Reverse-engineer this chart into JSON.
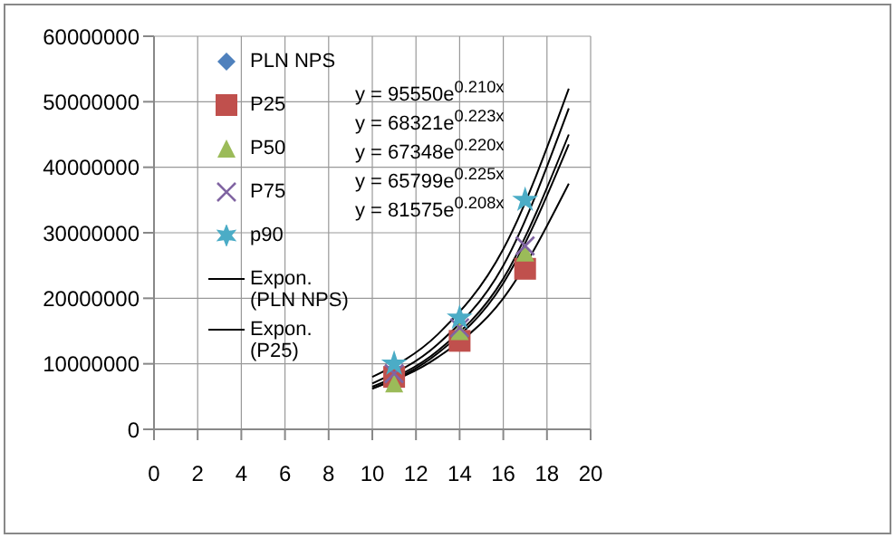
{
  "chart_data": {
    "type": "scatter",
    "xlim": [
      0,
      20
    ],
    "xticks": [
      0,
      2,
      4,
      6,
      8,
      10,
      12,
      14,
      16,
      18,
      20
    ],
    "ylim": [
      0,
      60000000
    ],
    "yticks": [
      0,
      10000000,
      20000000,
      30000000,
      40000000,
      50000000,
      60000000
    ],
    "grid": true,
    "legend": "top left",
    "x": [
      11,
      14,
      17
    ],
    "series": [
      {
        "name": "PLN NPS",
        "color": "#4f81bd",
        "marker": "diamond",
        "values": [
          null,
          null,
          null
        ]
      },
      {
        "name": "P25",
        "color": "#c0504d",
        "marker": "square",
        "values": [
          8000000,
          13500000,
          24500000
        ]
      },
      {
        "name": "P50",
        "color": "#9bbb59",
        "marker": "triangle",
        "values": [
          7000000,
          15000000,
          27000000
        ]
      },
      {
        "name": "P75",
        "color": "#8064a2",
        "marker": "cross",
        "values": [
          8500000,
          15500000,
          28000000
        ]
      },
      {
        "name": "p90",
        "color": "#4bacc6",
        "marker": "star",
        "values": [
          10000000,
          17000000,
          35000000
        ]
      },
      {
        "name": "Expon. (PLN NPS)",
        "type": "line",
        "color": "#000000",
        "x": [
          10,
          13,
          16,
          19
        ],
        "values": [
          8000000,
          14500000,
          27500000,
          52000000
        ]
      },
      {
        "name": "Expon. (P25)",
        "type": "line",
        "color": "#000000",
        "x": [
          10,
          13,
          16,
          19
        ],
        "values": [
          7000000,
          13000000,
          25000000,
          49000000
        ]
      },
      {
        "type": "line",
        "color": "#000000",
        "x": [
          10,
          13,
          16,
          19
        ],
        "values": [
          6500000,
          12000000,
          23000000,
          45000000
        ]
      },
      {
        "type": "line",
        "color": "#000000",
        "x": [
          10,
          13,
          16,
          19
        ],
        "values": [
          6200000,
          11600000,
          22300000,
          43500000
        ]
      },
      {
        "type": "line",
        "color": "#000000",
        "x": [
          10,
          13,
          16,
          19
        ],
        "values": [
          6200000,
          11000000,
          20000000,
          37500000
        ]
      }
    ],
    "annotations": [
      "y = 95550e$^{0.210x}$",
      "y = 68321e$^{0.223x}$",
      "y = 67348e$^{0.220x}$",
      "y = 65799e$^{0.225x}$",
      "y = 81575e$^{0.208x}$"
    ]
  }
}
